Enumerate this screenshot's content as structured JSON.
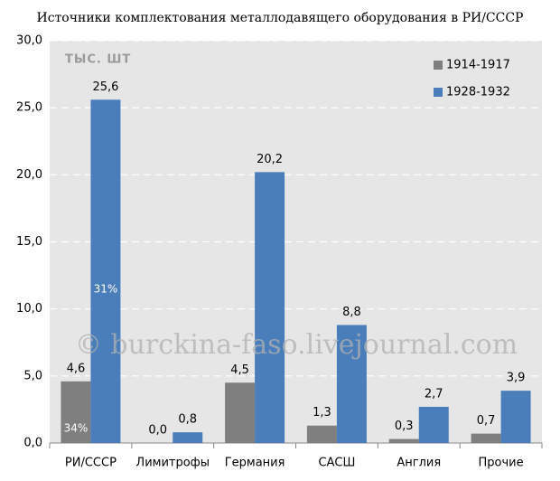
{
  "chart_data": {
    "type": "bar",
    "title": "Источники комплектования металлодавящего оборудования в РИ/СССР",
    "unit_label": "ТЫС. ШТ",
    "watermark": "© burckina-faso.livejournal.com",
    "bar_annotations": [
      "34%",
      "31%"
    ],
    "categories": [
      "РИ/СССР",
      "Лимитрофы",
      "Германия",
      "САСШ",
      "Англия",
      "Прочие"
    ],
    "series": [
      {
        "name": "1914-1917",
        "color": "#7f7f7f",
        "values": [
          4.6,
          0.0,
          4.5,
          1.3,
          0.3,
          0.7
        ],
        "value_labels": [
          "4,6",
          "0,0",
          "4,5",
          "1,3",
          "0,3",
          "0,7"
        ]
      },
      {
        "name": "1928-1932",
        "color": "#4a7ebb",
        "values": [
          25.6,
          0.8,
          20.2,
          8.8,
          2.7,
          3.9
        ],
        "value_labels": [
          "25,6",
          "0,8",
          "20,2",
          "8,8",
          "2,7",
          "3,9"
        ]
      }
    ],
    "ylim": [
      0,
      30
    ],
    "yticks": [
      {
        "value": 0,
        "label": "0,0"
      },
      {
        "value": 5,
        "label": "5,0"
      },
      {
        "value": 10,
        "label": "10,0"
      },
      {
        "value": 15,
        "label": "15,0"
      },
      {
        "value": 20,
        "label": "20,0"
      },
      {
        "value": 25,
        "label": "25,0"
      },
      {
        "value": 30,
        "label": "30,0"
      }
    ],
    "grid": true,
    "legend": "top-right"
  }
}
